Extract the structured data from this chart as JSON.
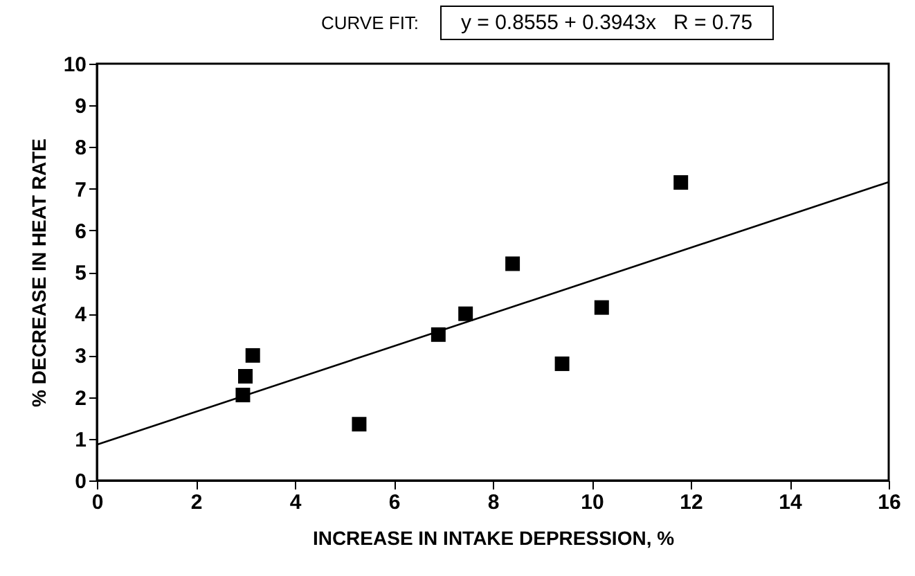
{
  "chart_data": {
    "type": "scatter",
    "xlabel": "INCREASE IN INTAKE DEPRESSION, %",
    "ylabel": "% DECREASE IN HEAT RATE",
    "annotations": [
      "CURVE FIT:",
      "y = 0.8555 + 0.3943x   R = 0.75"
    ],
    "xlim": [
      0,
      16
    ],
    "xticks": [
      0,
      2,
      4,
      6,
      8,
      10,
      12,
      14,
      16
    ],
    "ylim": [
      0,
      10
    ],
    "yticks": [
      0,
      1,
      2,
      3,
      4,
      5,
      6,
      7,
      8,
      9,
      10
    ],
    "grid": false,
    "series": [
      {
        "marker": "square",
        "color": "#000000",
        "x": [
          2.95,
          3.0,
          3.15,
          5.3,
          6.9,
          7.45,
          8.4,
          9.4,
          10.2,
          11.8
        ],
        "values": [
          2.05,
          2.5,
          3.0,
          1.35,
          3.5,
          4.0,
          5.2,
          2.8,
          4.15,
          7.15
        ]
      },
      {
        "type": "line",
        "color": "#000000",
        "x": [
          0,
          16
        ],
        "values": [
          0.86,
          7.16
        ]
      }
    ]
  }
}
